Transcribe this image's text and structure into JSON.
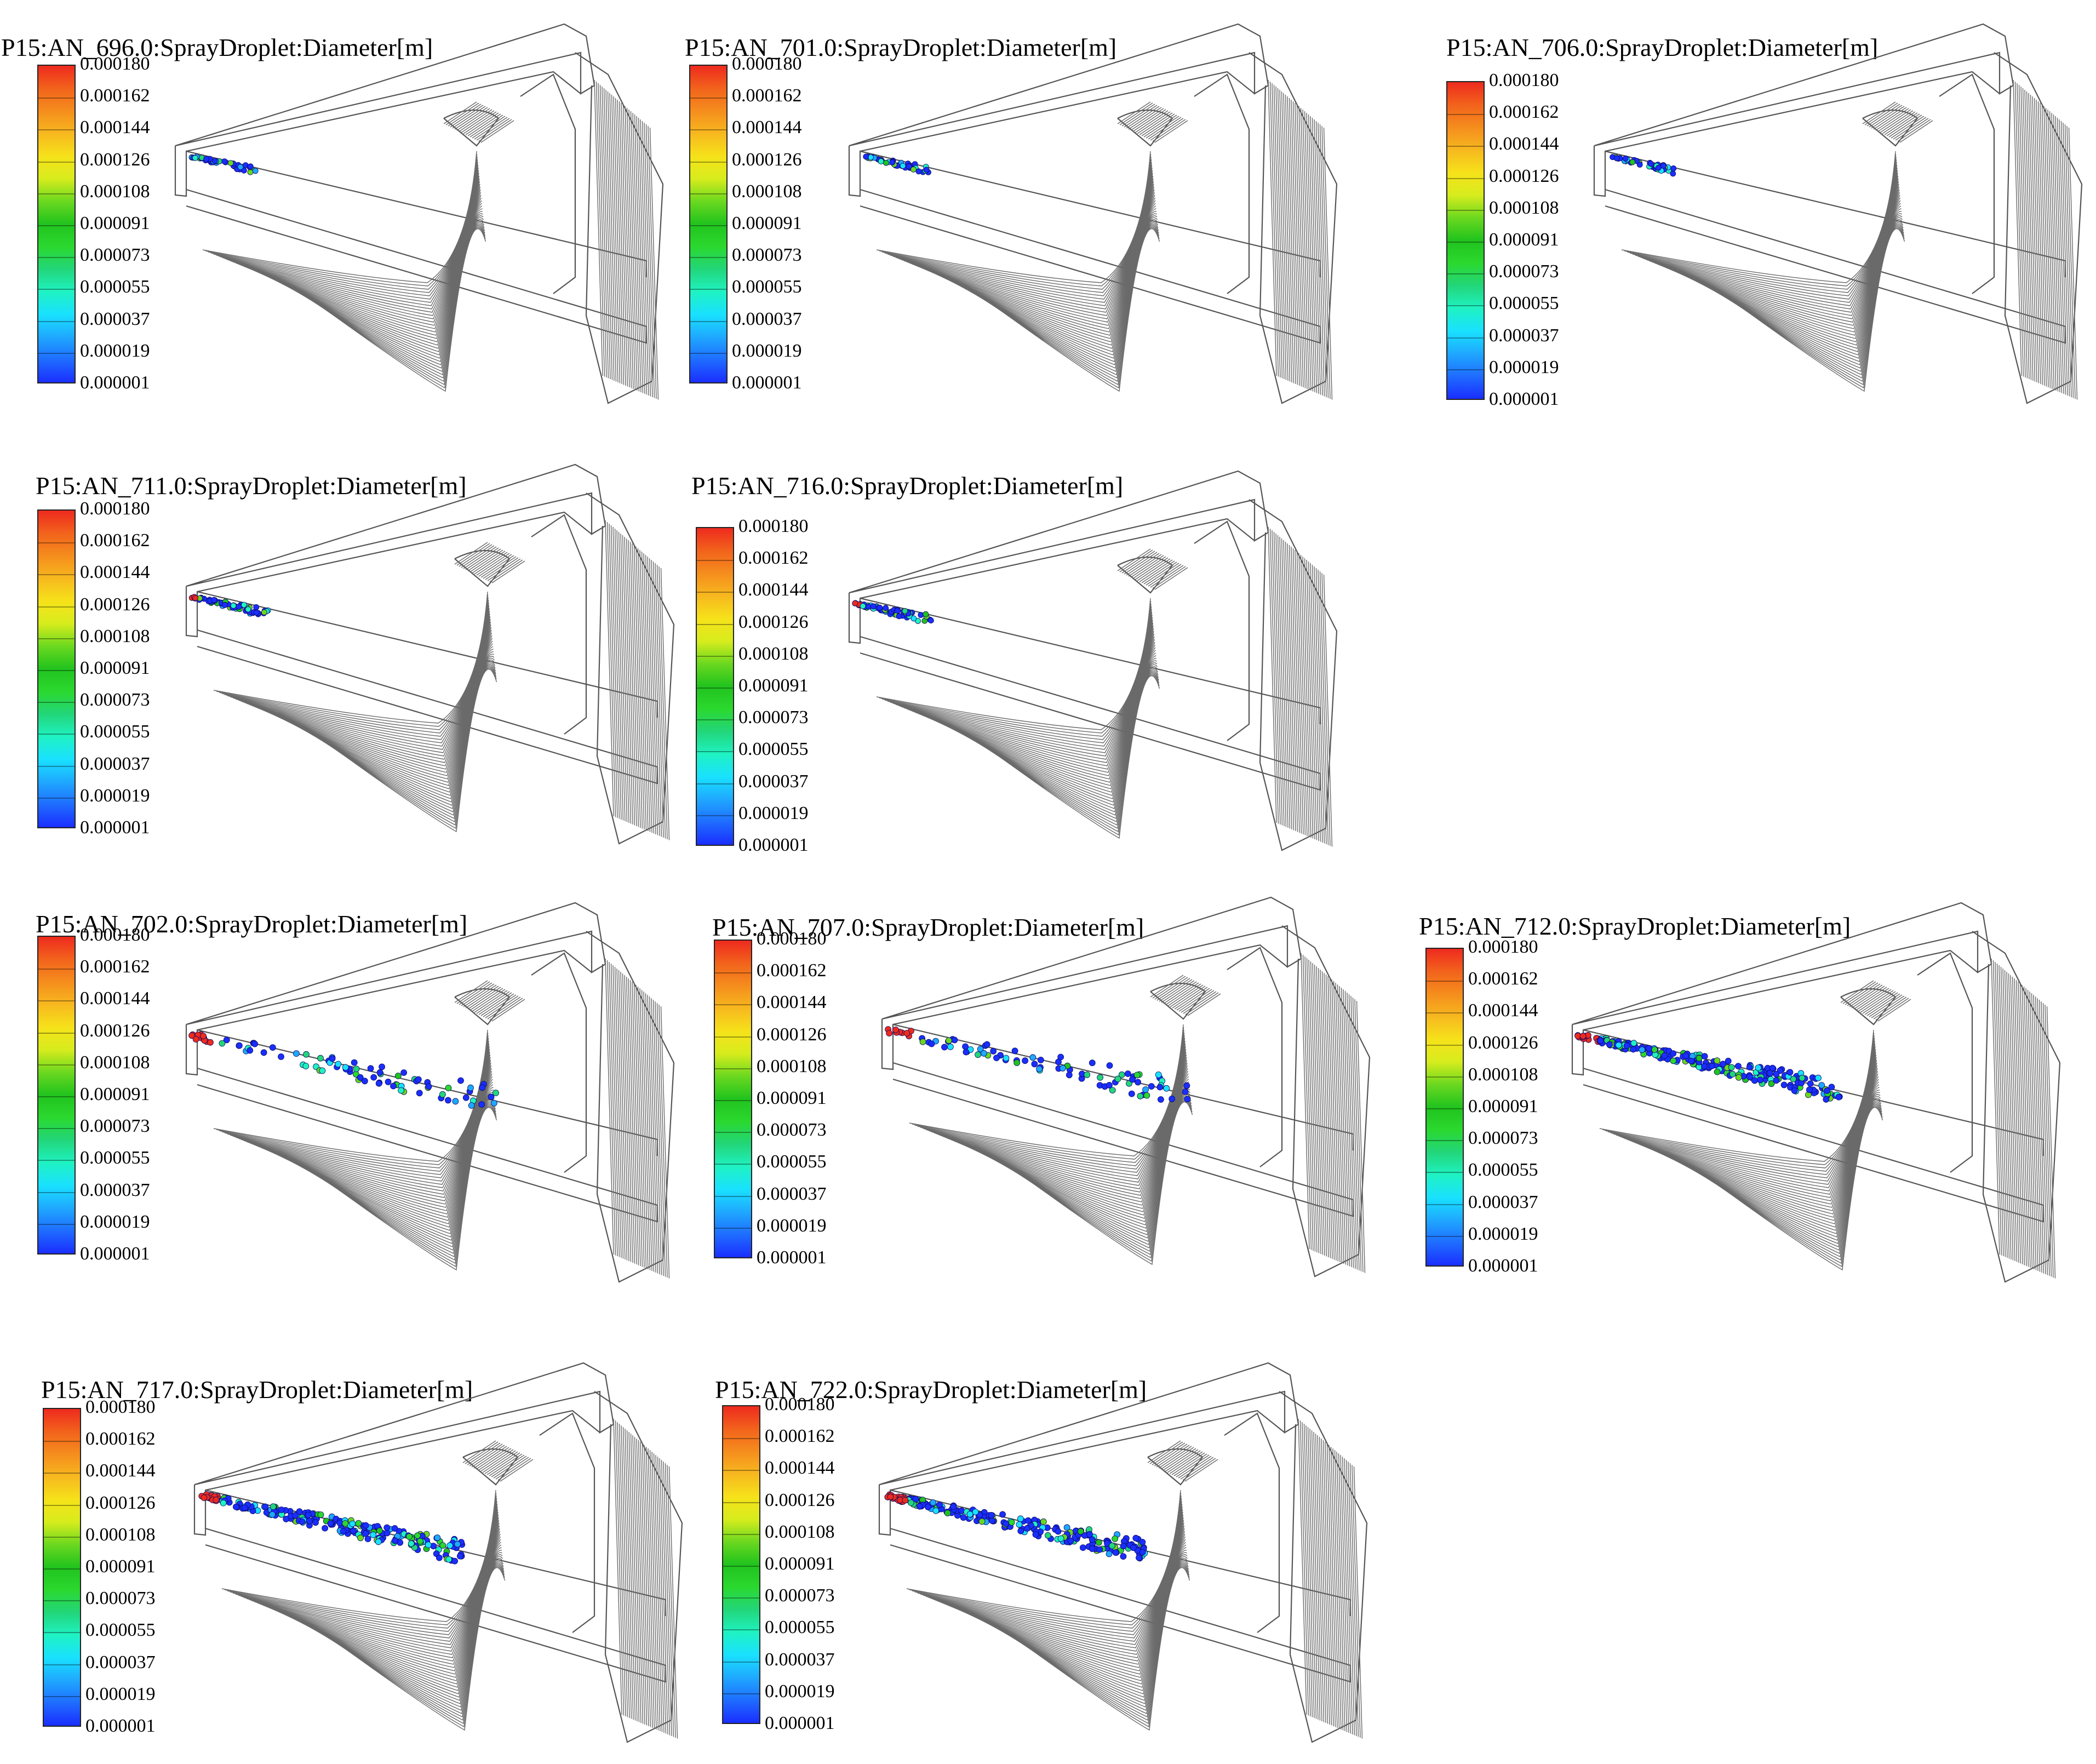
{
  "colormap": [
    "#1a2eff",
    "#1f6cff",
    "#1fa8ff",
    "#19e1ff",
    "#1ff2c2",
    "#22d67a",
    "#2bd82e",
    "#21c31e",
    "#6ad81f",
    "#d7ec1d",
    "#f6e21a",
    "#f7b81f",
    "#f58d1d",
    "#f2621c",
    "#ee2a1e"
  ],
  "legend_ticks": [
    "0.000180",
    "0.000162",
    "0.000144",
    "0.000126",
    "0.000108",
    "0.000091",
    "0.000073",
    "0.000055",
    "0.000037",
    "0.000019",
    "0.000001"
  ],
  "panels": [
    {
      "title": "P15:AN_696.0:SprayDroplet:Diameter[m]",
      "spray": 1
    },
    {
      "title": "P15:AN_701.0:SprayDroplet:Diameter[m]",
      "spray": 1
    },
    {
      "title": "P15:AN_706.0:SprayDroplet:Diameter[m]",
      "spray": 1
    },
    {
      "title": "P15:AN_711.0:SprayDroplet:Diameter[m]",
      "spray": 2
    },
    {
      "title": "P15:AN_716.0:SprayDroplet:Diameter[m]",
      "spray": 2
    },
    {
      "title": "P15:AN_702.0:SprayDroplet:Diameter[m]",
      "spray": 3
    },
    {
      "title": "P15:AN_707.0:SprayDroplet:Diameter[m]",
      "spray": 3
    },
    {
      "title": "P15:AN_712.0:SprayDroplet:Diameter[m]",
      "spray": 4
    },
    {
      "title": "P15:AN_717.0:SprayDroplet:Diameter[m]",
      "spray": 4
    },
    {
      "title": "P15:AN_722.0:SprayDroplet:Diameter[m]",
      "spray": 4
    }
  ]
}
